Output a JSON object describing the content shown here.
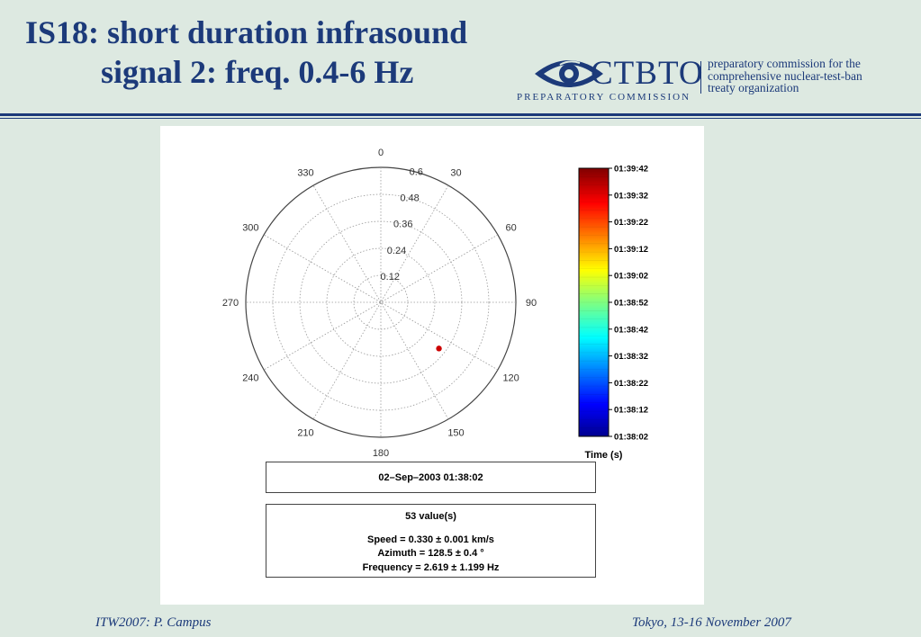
{
  "slide": {
    "title_line1": "IS18: short duration infrasound",
    "title_line2": "signal 2: freq. 0.4-6 Hz",
    "footer_left": "ITW2007: P. Campus",
    "footer_right": "Tokyo, 13-16 November 2007",
    "accent_color": "#1c3a7a",
    "background_color": "#dde9e1"
  },
  "logo": {
    "wordmark": "CTBTO",
    "subtitle": "PREPARATORY COMMISSION",
    "description_lines": [
      "preparatory commission for the",
      "comprehensive nuclear-test-ban",
      "treaty organization"
    ],
    "icon": "eye-icon"
  },
  "chart_data": {
    "type": "scatter",
    "projection": "polar",
    "angle_direction": "clockwise",
    "zero_angle": "top",
    "angle_ticks": [
      "0",
      "30",
      "60",
      "90",
      "120",
      "150",
      "180",
      "210",
      "240",
      "270",
      "300",
      "330"
    ],
    "radial_ticks": [
      "0.12",
      "0.24",
      "0.36",
      "0.48",
      "0.6"
    ],
    "radial_max": 0.6,
    "grid": true,
    "points": [
      {
        "azimuth": 128.5,
        "speed": 0.33,
        "color": "#cc0000"
      }
    ],
    "colorbar": {
      "title": "Time (s)",
      "ticks": [
        "01:39:42",
        "01:39:32",
        "01:39:22",
        "01:39:12",
        "01:39:02",
        "01:38:52",
        "01:38:42",
        "01:38:32",
        "01:38:22",
        "01:38:12",
        "01:38:02"
      ],
      "colormap": "jet"
    },
    "date_label": "02–Sep–2003 01:38:02",
    "stats": {
      "count": "53 value(s)",
      "speed": "Speed = 0.330 ± 0.001 km/s",
      "azimuth": "Azimuth = 128.5 ± 0.4 °",
      "frequency": "Frequency = 2.619 ± 1.199 Hz"
    }
  }
}
